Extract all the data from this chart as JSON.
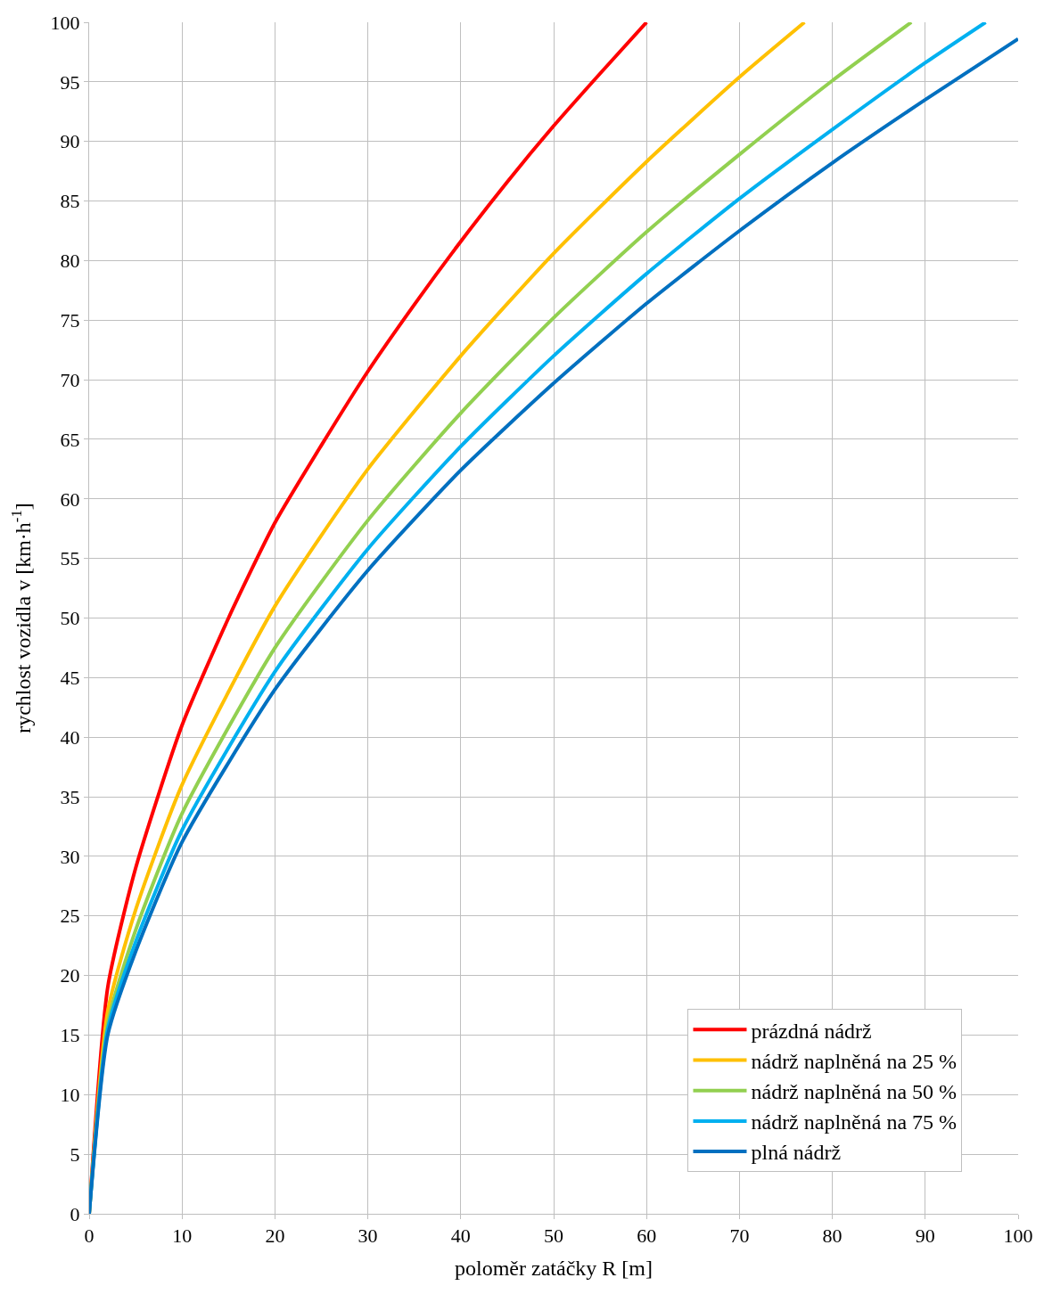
{
  "chart_data": {
    "type": "line",
    "xlabel": "poloměr zatáčky R [m]",
    "ylabel": "rychlost vozidla v [km·h$^{-1}$]",
    "xlim": [
      0,
      100
    ],
    "xticks": [
      0,
      10,
      20,
      30,
      40,
      50,
      60,
      70,
      80,
      90,
      100
    ],
    "ylim": [
      0,
      100
    ],
    "yticks": [
      0,
      5,
      10,
      15,
      20,
      25,
      30,
      35,
      40,
      45,
      50,
      55,
      60,
      65,
      70,
      75,
      80,
      85,
      90,
      95,
      100
    ],
    "grid": true,
    "legend": "bottom right",
    "marker": "none",
    "line_style": "solid",
    "series": [
      {
        "name": "prázdná nádrž",
        "color": "#ff0000",
        "x": [
          0,
          2,
          5,
          10,
          15,
          20,
          25,
          30,
          35,
          40,
          45,
          50,
          55,
          60
        ],
        "values": [
          0,
          19,
          29,
          41,
          50,
          58,
          64.5,
          70.7,
          76.3,
          81.6,
          86.6,
          91.3,
          95.7,
          100
        ]
      },
      {
        "name": "nádrž naplněná na 25 %",
        "color": "#ffc000",
        "x": [
          0,
          2,
          5,
          10,
          20,
          30,
          40,
          50,
          60,
          70,
          77
        ],
        "values": [
          0,
          17,
          25.5,
          36,
          51,
          62.5,
          72,
          80.6,
          88.3,
          95.4,
          100
        ]
      },
      {
        "name": "nádrž naplněná na 50 %",
        "color": "#92d050",
        "x": [
          0,
          2,
          5,
          10,
          20,
          30,
          40,
          50,
          60,
          70,
          80,
          88.5
        ],
        "values": [
          0,
          16,
          23.8,
          33.6,
          47.5,
          58.2,
          67.2,
          75.2,
          82.4,
          88.9,
          95.1,
          100
        ]
      },
      {
        "name": "nádrž naplněná na 75 %",
        "color": "#00b0f0",
        "x": [
          0,
          2,
          5,
          10,
          20,
          30,
          40,
          50,
          60,
          70,
          80,
          90,
          96.5
        ],
        "values": [
          0,
          15.5,
          22.8,
          32.2,
          45.5,
          55.8,
          64.4,
          72,
          78.9,
          85.2,
          91,
          96.6,
          100
        ]
      },
      {
        "name": "plná nádrž",
        "color": "#0070c0",
        "x": [
          0,
          2,
          5,
          10,
          20,
          30,
          40,
          50,
          60,
          70,
          80,
          90,
          100
        ],
        "values": [
          0,
          15,
          22,
          31.2,
          44,
          54,
          62.4,
          69.7,
          76.4,
          82.5,
          88.2,
          93.5,
          98.6
        ]
      }
    ]
  }
}
